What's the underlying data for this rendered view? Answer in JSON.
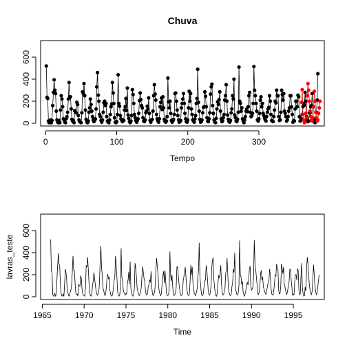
{
  "chart_data": [
    {
      "type": "line",
      "title": "Chuva",
      "xlabel": "Tempo",
      "ylabel": "",
      "xlim": [
        -7,
        392
      ],
      "ylim": [
        -25,
        750
      ],
      "xticks": [
        0,
        100,
        200,
        300
      ],
      "yticks": [
        0,
        200,
        400,
        600
      ],
      "markers": "filled-circle",
      "series": [
        {
          "role": "observed",
          "color": "#000000",
          "x_start": 1,
          "values": [
            520,
            235,
            225,
            20,
            5,
            10,
            30,
            5,
            25,
            160,
            280,
            395,
            300,
            270,
            110,
            30,
            10,
            5,
            25,
            5,
            120,
            250,
            220,
            150,
            40,
            30,
            10,
            5,
            40,
            60,
            100,
            220,
            370,
            240,
            240,
            130,
            35,
            20,
            25,
            5,
            115,
            100,
            95,
            190,
            170,
            70,
            30,
            15,
            10,
            5,
            95,
            285,
            270,
            360,
            250,
            120,
            35,
            10,
            5,
            20,
            100,
            140,
            220,
            170,
            110,
            60,
            30,
            15,
            25,
            40,
            130,
            330,
            460,
            255,
            200,
            80,
            60,
            25,
            10,
            30,
            100,
            185,
            200,
            160,
            180,
            60,
            20,
            10,
            5,
            30,
            80,
            150,
            175,
            370,
            275,
            180,
            50,
            10,
            5,
            15,
            80,
            440,
            180,
            155,
            70,
            40,
            30,
            15,
            30,
            25,
            120,
            150,
            225,
            115,
            320,
            75,
            45,
            15,
            5,
            20,
            70,
            305,
            260,
            180,
            80,
            50,
            25,
            10,
            25,
            40,
            90,
            205,
            275,
            215,
            160,
            140,
            50,
            20,
            15,
            30,
            95,
            110,
            155,
            130,
            230,
            90,
            25,
            10,
            30,
            35,
            110,
            250,
            350,
            265,
            210,
            80,
            40,
            20,
            10,
            40,
            150,
            190,
            230,
            125,
            240,
            140,
            35,
            15,
            10,
            20,
            60,
            410,
            195,
            140,
            200,
            90,
            25,
            10,
            20,
            35,
            80,
            270,
            275,
            200,
            120,
            70,
            30,
            10,
            15,
            25,
            140,
            180,
            220,
            270,
            180,
            90,
            40,
            15,
            10,
            30,
            140,
            290,
            200,
            270,
            130,
            80,
            30,
            20,
            10,
            40,
            70,
            180,
            225,
            490,
            190,
            110,
            35,
            10,
            15,
            30,
            95,
            145,
            150,
            285,
            245,
            150,
            50,
            20,
            15,
            40,
            95,
            265,
            330,
            355,
            160,
            90,
            30,
            10,
            5,
            45,
            130,
            195,
            170,
            215,
            285,
            110,
            40,
            15,
            20,
            50,
            80,
            210,
            250,
            350,
            200,
            75,
            35,
            15,
            10,
            25,
            95,
            130,
            250,
            220,
            400,
            75,
            50,
            20,
            15,
            35,
            100,
            510,
            200,
            180,
            110,
            140,
            40,
            20,
            5,
            30,
            60,
            110,
            130,
            105,
            150,
            250,
            280,
            100,
            60,
            70,
            90,
            180,
            515,
            300,
            250,
            180,
            110,
            30,
            20,
            40,
            90,
            210,
            240,
            150,
            180,
            90,
            70,
            45,
            30,
            20,
            60,
            100,
            130,
            145,
            250,
            200,
            80,
            25,
            20,
            15,
            60,
            120,
            200,
            185,
            300,
            250,
            250,
            60,
            25,
            30,
            100,
            300,
            260,
            210,
            270,
            110,
            90,
            60,
            20,
            30,
            60,
            110,
            140,
            250,
            250,
            150,
            80,
            10,
            25,
            20,
            130,
            200,
            200,
            150,
            255,
            240,
            60,
            20,
            25,
            40,
            80,
            150,
            180,
            165,
            280,
            200,
            60,
            30,
            15,
            20,
            95,
            95,
            150,
            160,
            270,
            40,
            20,
            10,
            5,
            40,
            100,
            210,
            450
          ]
        },
        {
          "role": "test",
          "color": "#ff0000",
          "x_start": 360,
          "values": [
            190,
            305,
            80,
            30,
            5,
            10,
            90,
            50,
            250,
            360,
            300,
            200,
            110,
            60,
            30,
            20,
            50,
            150,
            290,
            200,
            100,
            50,
            20,
            30,
            90,
            140,
            200
          ]
        }
      ]
    },
    {
      "type": "line",
      "title": "",
      "xlabel": "Time",
      "ylabel": "lavras_teste",
      "xlim": [
        1964.8,
        1998.7
      ],
      "ylim": [
        -25,
        750
      ],
      "xticks": [
        1965,
        1970,
        1975,
        1980,
        1985,
        1990,
        1995
      ],
      "yticks": [
        0,
        200,
        400,
        600
      ],
      "series": [
        {
          "start": 1966.0,
          "frequency": 12,
          "color": "#000000",
          "source": "observed_plus_test"
        }
      ]
    }
  ]
}
